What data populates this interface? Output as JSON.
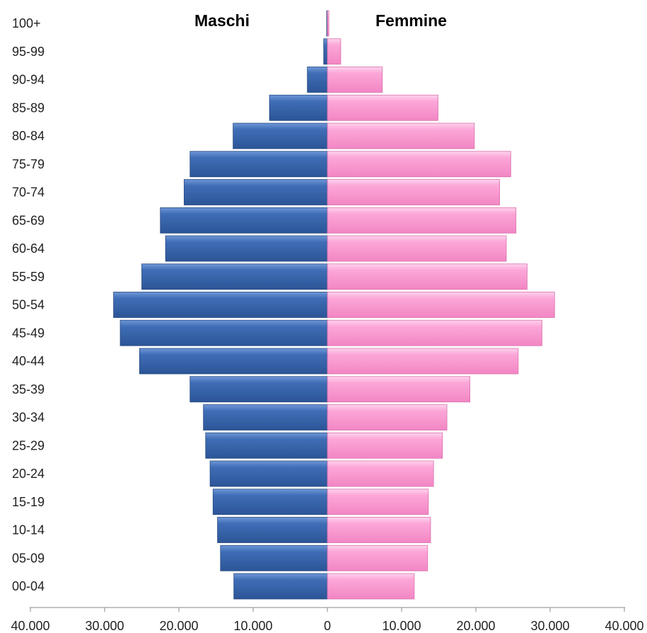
{
  "chart_data": {
    "type": "bar",
    "orientation": "horizontal",
    "layout": "population-pyramid",
    "categories": [
      "100+",
      "95-99",
      "90-94",
      "85-89",
      "80-84",
      "75-79",
      "70-74",
      "65-69",
      "60-64",
      "55-59",
      "50-54",
      "45-49",
      "40-44",
      "35-39",
      "30-34",
      "25-29",
      "20-24",
      "15-19",
      "10-14",
      "05-09",
      "00-04"
    ],
    "series": [
      {
        "name": "Maschi",
        "side": "left",
        "color": "#3a67b0",
        "values": [
          100,
          500,
          2700,
          7800,
          12700,
          18500,
          19300,
          22500,
          21800,
          25000,
          28800,
          27900,
          25300,
          18500,
          16700,
          16400,
          15800,
          15400,
          14800,
          14400,
          12600
        ]
      },
      {
        "name": "Femmine",
        "side": "right",
        "color": "#fa9fd4",
        "values": [
          200,
          1800,
          7400,
          14900,
          19800,
          24700,
          23200,
          25400,
          24100,
          26900,
          30600,
          28900,
          25700,
          19200,
          16100,
          15500,
          14300,
          13600,
          13900,
          13500,
          11700
        ]
      }
    ],
    "xaxis": {
      "range": [
        -40000,
        40000
      ],
      "tick_values": [
        -40000,
        -30000,
        -20000,
        -10000,
        0,
        10000,
        20000,
        30000,
        40000
      ],
      "tick_labels": [
        "40.000",
        "30.000",
        "20.000",
        "10.000",
        "0",
        "10.000",
        "20.000",
        "30.000",
        "40.000"
      ]
    },
    "grid": false,
    "legend": "none"
  }
}
